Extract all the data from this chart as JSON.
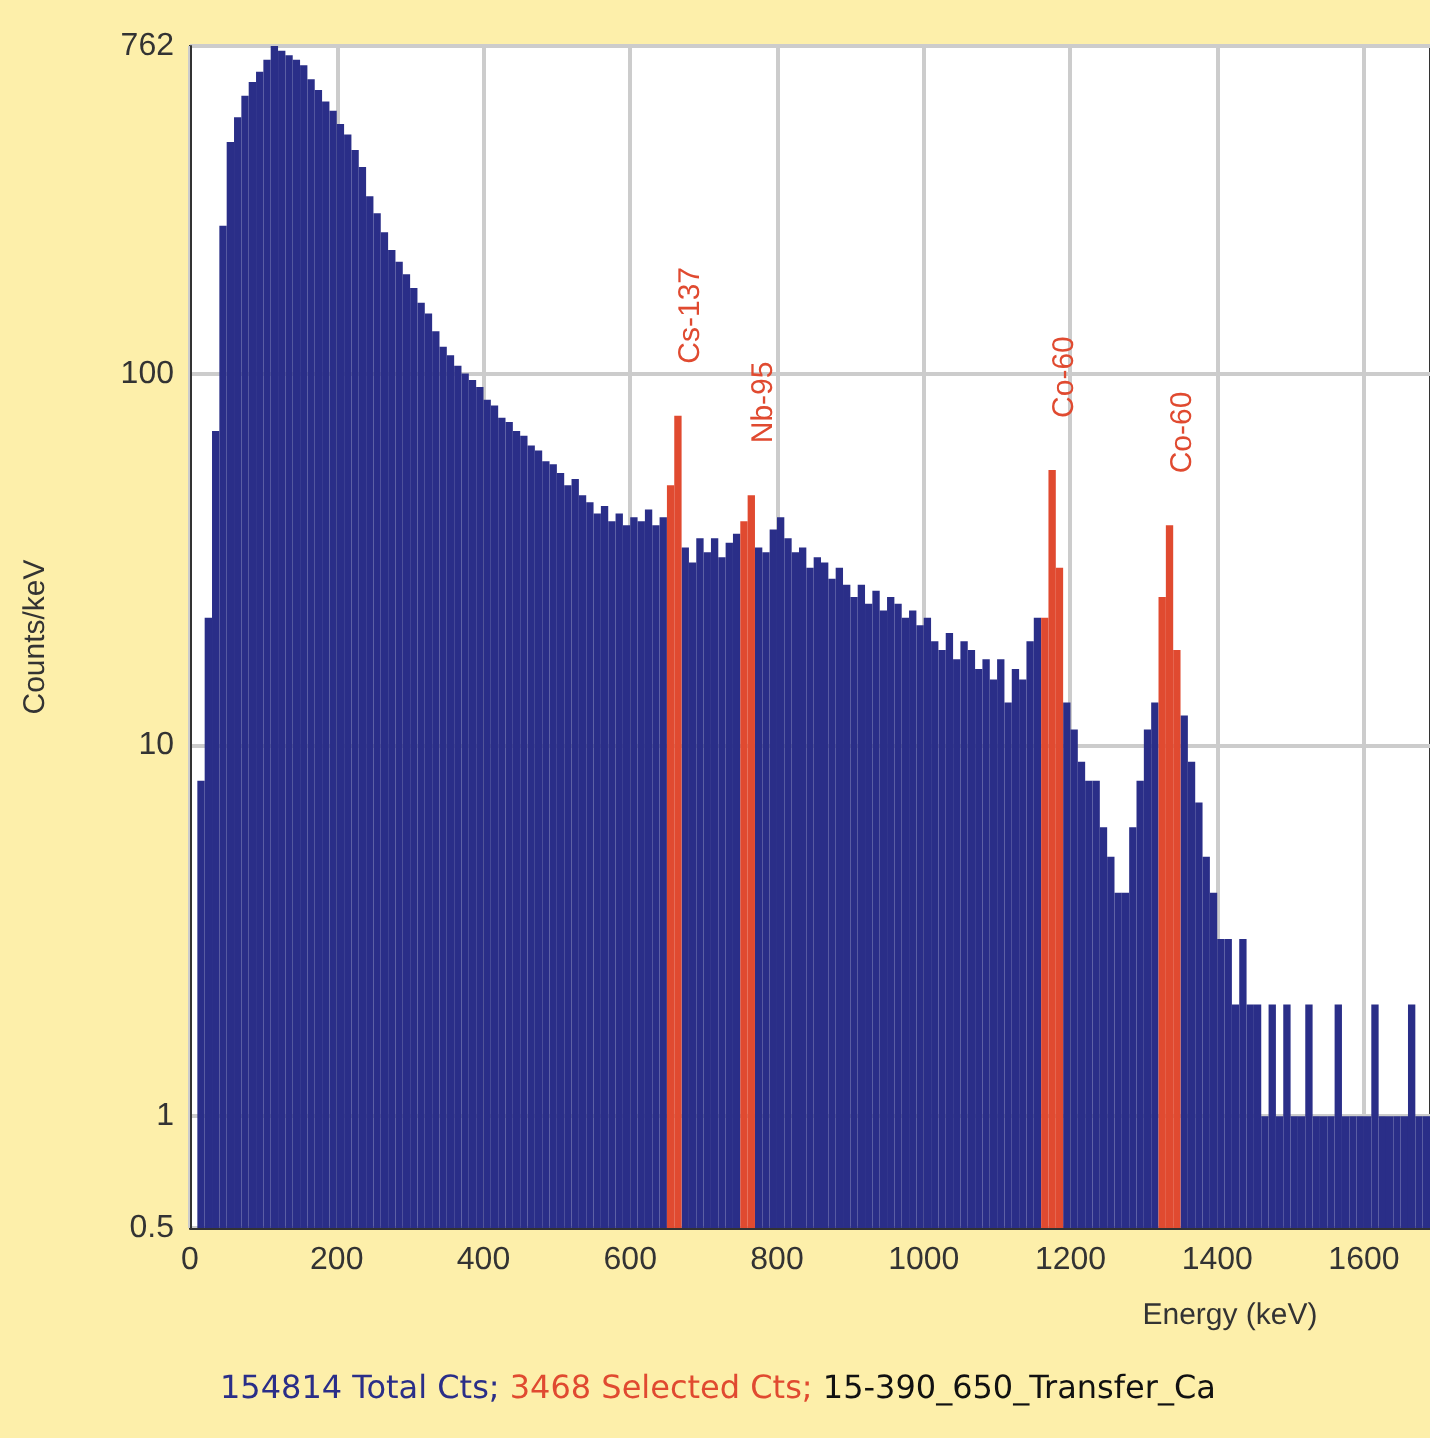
{
  "chart_data": {
    "type": "histogram",
    "xlabel": "Energy (keV)",
    "ylabel": "Counts/keV",
    "log": "y",
    "grid": true,
    "xlim": [
      0,
      1690
    ],
    "xticks": [
      0,
      200,
      400,
      600,
      800,
      1000,
      1200,
      1400,
      1600
    ],
    "ylim": [
      0.5,
      762
    ],
    "yticks": [
      0.5,
      1,
      10,
      100,
      762
    ],
    "bins": [
      10,
      20,
      30,
      40,
      50,
      60,
      70,
      80,
      90,
      100,
      110,
      120,
      130,
      140,
      150,
      160,
      170,
      180,
      190,
      200,
      210,
      220,
      230,
      240,
      250,
      260,
      270,
      280,
      290,
      300,
      310,
      320,
      330,
      340,
      350,
      360,
      370,
      380,
      390,
      400,
      410,
      420,
      430,
      440,
      450,
      460,
      470,
      480,
      490,
      500,
      510,
      520,
      530,
      540,
      550,
      560,
      570,
      580,
      590,
      600,
      610,
      620,
      630,
      640,
      650,
      660,
      670,
      680,
      690,
      700,
      710,
      720,
      730,
      740,
      750,
      760,
      770,
      780,
      790,
      800,
      810,
      820,
      830,
      840,
      850,
      860,
      870,
      880,
      890,
      900,
      910,
      920,
      930,
      940,
      950,
      960,
      970,
      980,
      990,
      1000,
      1010,
      1020,
      1030,
      1040,
      1050,
      1060,
      1070,
      1080,
      1090,
      1100,
      1110,
      1120,
      1130,
      1140,
      1150,
      1160,
      1170,
      1180,
      1190,
      1200,
      1210,
      1220,
      1230,
      1240,
      1250,
      1260,
      1270,
      1280,
      1290,
      1300,
      1310,
      1320,
      1330,
      1340,
      1350,
      1360,
      1370,
      1380,
      1390,
      1400,
      1410,
      1420,
      1430,
      1440,
      1450,
      1460,
      1470,
      1480,
      1490,
      1500,
      1510,
      1520,
      1530,
      1540,
      1550,
      1560,
      1570,
      1580,
      1590,
      1600,
      1610,
      1620,
      1630,
      1640,
      1650,
      1660,
      1670,
      1680,
      1690
    ],
    "series": [
      {
        "color": "#2a2e88",
        "values": [
          8,
          22,
          70,
          250,
          420,
          490,
          560,
          610,
          650,
          700,
          762,
          740,
          720,
          700,
          676,
          620,
          580,
          540,
          510,
          470,
          440,
          400,
          360,
          300,
          270,
          240,
          215,
          200,
          185,
          170,
          155,
          145,
          130,
          118,
          112,
          105,
          100,
          96,
          92,
          85,
          82,
          76,
          74,
          70,
          68,
          64,
          62,
          58,
          57,
          54,
          50,
          52,
          47,
          45,
          42,
          44,
          40,
          42,
          39,
          41,
          40,
          43,
          39,
          41,
          null,
          null,
          34,
          31,
          36,
          33,
          36,
          32,
          35,
          37,
          null,
          null,
          34,
          33,
          38,
          41,
          36,
          33,
          34,
          30,
          32,
          31,
          28,
          30,
          27,
          25,
          27,
          24,
          26,
          23,
          25,
          24,
          22,
          23,
          21,
          22,
          19,
          18,
          20,
          17,
          19,
          18,
          16,
          17,
          15,
          17,
          13,
          16,
          15,
          19,
          22,
          null,
          null,
          null,
          13,
          11,
          9,
          8,
          8,
          6,
          5,
          4,
          4,
          6,
          8,
          11,
          13,
          null,
          null,
          null,
          12,
          9,
          7,
          5,
          4,
          3,
          3,
          2,
          3,
          2,
          2,
          1,
          2,
          1,
          2,
          1,
          1,
          2,
          1,
          1,
          1,
          2,
          1,
          1,
          1,
          1,
          2,
          1,
          1,
          1,
          1,
          2,
          1,
          1
        ]
      },
      {
        "color": "#e04a30",
        "values": [
          null,
          null,
          null,
          null,
          null,
          null,
          null,
          null,
          null,
          null,
          null,
          null,
          null,
          null,
          null,
          null,
          null,
          null,
          null,
          null,
          null,
          null,
          null,
          null,
          null,
          null,
          null,
          null,
          null,
          null,
          null,
          null,
          null,
          null,
          null,
          null,
          null,
          null,
          null,
          null,
          null,
          null,
          null,
          null,
          null,
          null,
          null,
          null,
          null,
          null,
          null,
          null,
          null,
          null,
          null,
          null,
          null,
          null,
          null,
          null,
          null,
          null,
          null,
          null,
          50,
          77,
          null,
          null,
          null,
          null,
          null,
          null,
          null,
          null,
          40,
          47,
          null,
          null,
          null,
          null,
          null,
          null,
          null,
          null,
          null,
          null,
          null,
          null,
          null,
          null,
          null,
          null,
          null,
          null,
          null,
          null,
          null,
          null,
          null,
          null,
          null,
          null,
          null,
          null,
          null,
          null,
          null,
          null,
          null,
          null,
          null,
          null,
          null,
          null,
          null,
          22,
          55,
          30,
          null,
          null,
          null,
          null,
          null,
          null,
          null,
          null,
          null,
          null,
          null,
          null,
          null,
          25,
          39,
          18,
          null,
          null,
          null,
          null,
          null,
          null,
          null,
          null,
          null,
          null,
          null,
          null,
          null,
          null,
          null,
          null,
          null,
          null,
          null,
          null,
          null,
          null,
          null,
          null,
          null,
          null,
          null,
          null,
          null,
          null,
          null,
          null,
          null,
          null
        ]
      }
    ],
    "annotations": [
      {
        "text": "Cs-137",
        "x": 665,
        "y": 77
      },
      {
        "text": "Nb-95",
        "x": 765,
        "y": 47
      },
      {
        "text": "Co-60",
        "x": 1175,
        "y": 55
      },
      {
        "text": "Co-60",
        "x": 1335,
        "y": 39
      },
      "154814 Total Cts;",
      "3468 Selected Cts;",
      "15-390_650_Transfer_Ca"
    ]
  }
}
